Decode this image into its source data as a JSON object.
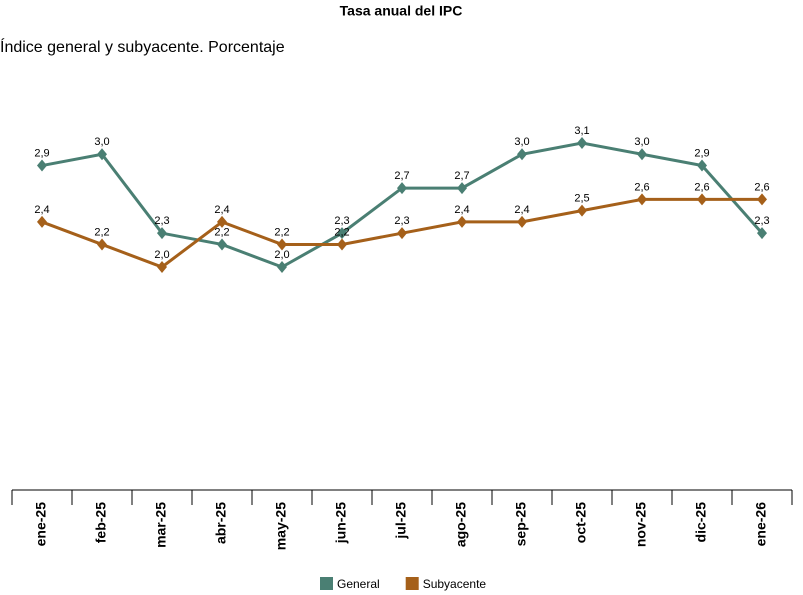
{
  "chart_data": {
    "type": "line",
    "title": "Tasa anual del IPC",
    "subtitle": "Índice general y subyacente. Porcentaje",
    "categories": [
      "ene-25",
      "feb-25",
      "mar-25",
      "abr-25",
      "may-25",
      "jun-25",
      "jul-25",
      "ago-25",
      "sep-25",
      "oct-25",
      "nov-25",
      "dic-25",
      "ene-26"
    ],
    "series": [
      {
        "name": "General",
        "color": "#4a7f73",
        "values": [
          2.9,
          3.0,
          2.3,
          2.2,
          2.0,
          2.3,
          2.7,
          2.7,
          3.0,
          3.1,
          3.0,
          2.9,
          2.3
        ],
        "value_labels": [
          "2,9",
          "3,0",
          "2,3",
          "2,2",
          "2,0",
          "2,3",
          "2,7",
          "2,7",
          "3,0",
          "3,1",
          "3,0",
          "2,9",
          "2,3"
        ]
      },
      {
        "name": "Subyacente",
        "color": "#a5601a",
        "values": [
          2.4,
          2.2,
          2.0,
          2.4,
          2.2,
          2.2,
          2.3,
          2.4,
          2.4,
          2.5,
          2.6,
          2.6,
          2.6
        ],
        "value_labels": [
          "2,4",
          "2,2",
          "2,0",
          "2,4",
          "2,2",
          "2,2",
          "2,3",
          "2,4",
          "2,4",
          "2,5",
          "2,6",
          "2,6",
          "2,6"
        ]
      }
    ]
  }
}
